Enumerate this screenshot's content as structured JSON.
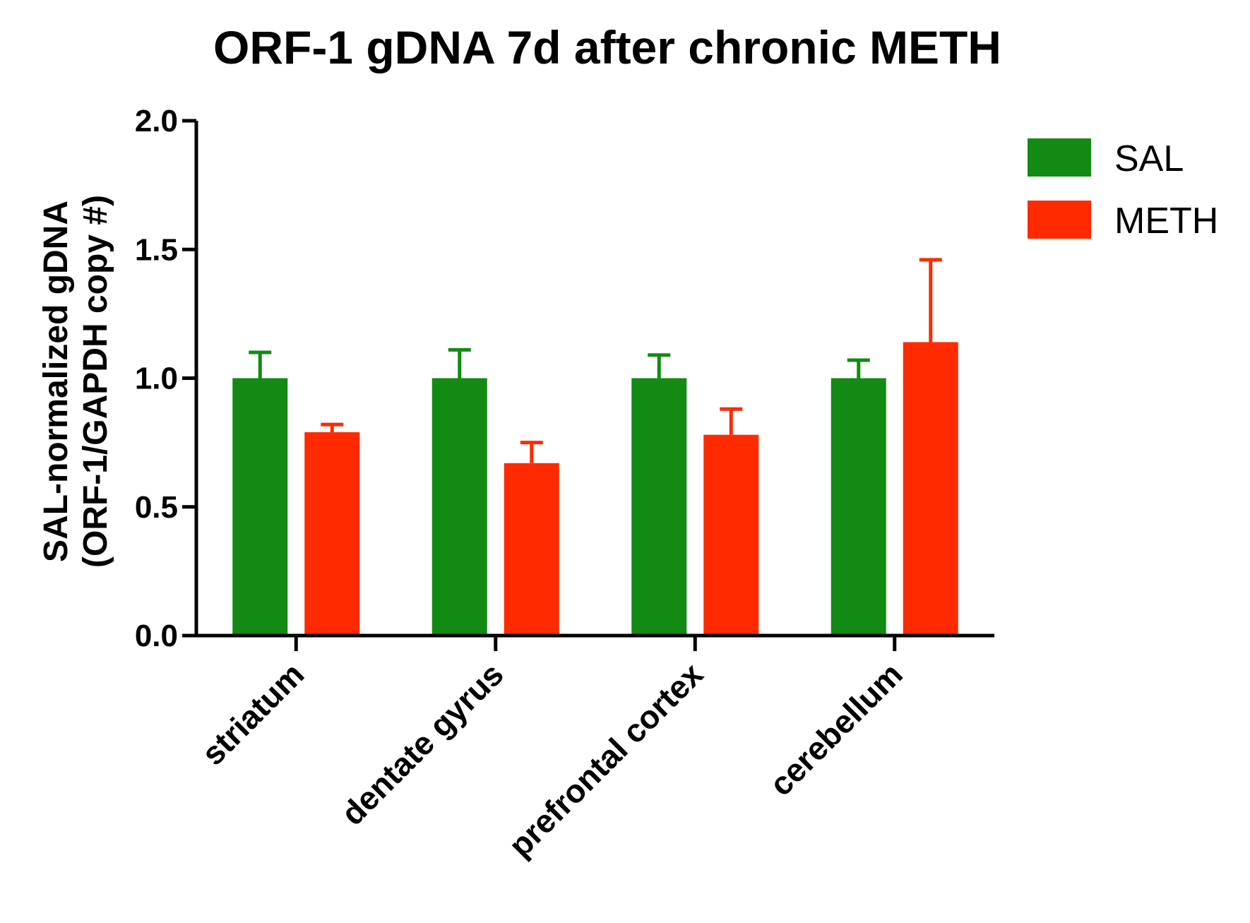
{
  "chart_data": {
    "type": "bar",
    "title": "ORF-1 gDNA 7d after chronic METH",
    "xlabel": "",
    "ylabel_lines": [
      "SAL-normalized gDNA",
      "(ORF-1/GAPDH copy #)"
    ],
    "ylim": [
      0,
      2.0
    ],
    "yticks": [
      "0.0",
      "0.5",
      "1.0",
      "1.5",
      "2.0"
    ],
    "ytick_values": [
      0,
      0.5,
      1.0,
      1.5,
      2.0
    ],
    "categories": [
      "striatum",
      "dentate gyrus",
      "prefrontal cortex",
      "cerebellum"
    ],
    "series": [
      {
        "name": "SAL",
        "color": "#138a13",
        "values": [
          1.0,
          1.0,
          1.0,
          1.0
        ],
        "errors": [
          0.1,
          0.11,
          0.09,
          0.07
        ]
      },
      {
        "name": "METH",
        "color": "#ff2a00",
        "values": [
          0.79,
          0.67,
          0.78,
          1.14
        ],
        "errors": [
          0.03,
          0.08,
          0.1,
          0.32
        ]
      }
    ],
    "legend_position": "top-right",
    "grid": false
  }
}
